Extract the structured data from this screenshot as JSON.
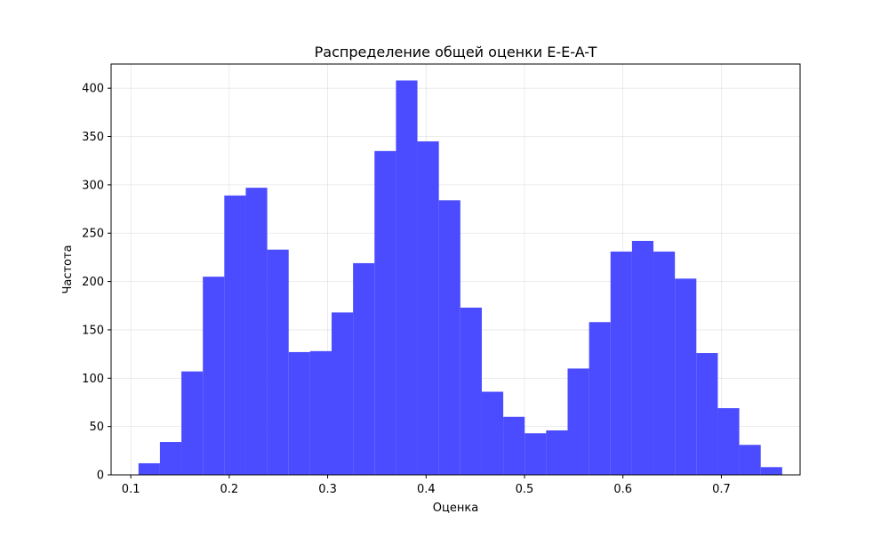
{
  "chart_data": {
    "type": "bar",
    "title": "Распределение общей оценки E-E-A-T",
    "xlabel": "Оценка",
    "ylabel": "Частота",
    "xlim": [
      0.08,
      0.78
    ],
    "ylim": [
      0,
      425
    ],
    "xticks": [
      0.1,
      0.2,
      0.3,
      0.4,
      0.5,
      0.6,
      0.7
    ],
    "xtick_labels": [
      "0.1",
      "0.2",
      "0.3",
      "0.4",
      "0.5",
      "0.6",
      "0.7"
    ],
    "yticks": [
      0,
      50,
      100,
      150,
      200,
      250,
      300,
      350,
      400
    ],
    "ytick_labels": [
      "0",
      "50",
      "100",
      "150",
      "200",
      "250",
      "300",
      "350",
      "400"
    ],
    "grid": true,
    "bar_color": "#4b4bff",
    "bin_edges": [
      0.1078,
      0.1296,
      0.1514,
      0.1732,
      0.195,
      0.2168,
      0.2386,
      0.2604,
      0.2822,
      0.304,
      0.3258,
      0.3476,
      0.3694,
      0.3912,
      0.413,
      0.4348,
      0.4566,
      0.4784,
      0.5002,
      0.522,
      0.5438,
      0.5656,
      0.5874,
      0.6092,
      0.631,
      0.6528,
      0.6746,
      0.6964,
      0.7182,
      0.74,
      0.7618
    ],
    "values": [
      12,
      34,
      107,
      205,
      289,
      297,
      233,
      127,
      128,
      168,
      219,
      335,
      408,
      345,
      284,
      173,
      86,
      60,
      43,
      46,
      110,
      158,
      231,
      242,
      231,
      203,
      126,
      69,
      31,
      8
    ]
  }
}
